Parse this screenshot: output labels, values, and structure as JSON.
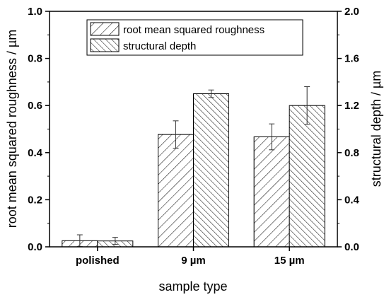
{
  "chart_data": {
    "type": "bar",
    "categories": [
      "polished",
      "9 µm",
      "15 µm"
    ],
    "series": [
      {
        "name": "root mean squared roughness",
        "axis": "left",
        "hatch": "forward-diagonal",
        "values": [
          0.026,
          0.477,
          0.467
        ],
        "errors": [
          0.025,
          0.058,
          0.055
        ]
      },
      {
        "name": "structural depth",
        "axis": "right",
        "hatch": "backward-diagonal",
        "values": [
          0.05,
          1.3,
          1.2
        ],
        "errors": [
          0.03,
          0.032,
          0.16
        ]
      }
    ],
    "xlabel": "sample type",
    "ylabel": "root mean squared roughness / µm",
    "ylabel_right": "structural depth / µm",
    "ylim": [
      0,
      1.0
    ],
    "ylim_right": [
      0,
      2.0
    ],
    "yticks": [
      "0.0",
      "0.2",
      "0.4",
      "0.6",
      "0.8",
      "1.0"
    ],
    "yticks_right": [
      "0.0",
      "0.4",
      "0.8",
      "1.2",
      "1.6",
      "2.0"
    ],
    "grid": false,
    "legend_position": "top-center"
  }
}
